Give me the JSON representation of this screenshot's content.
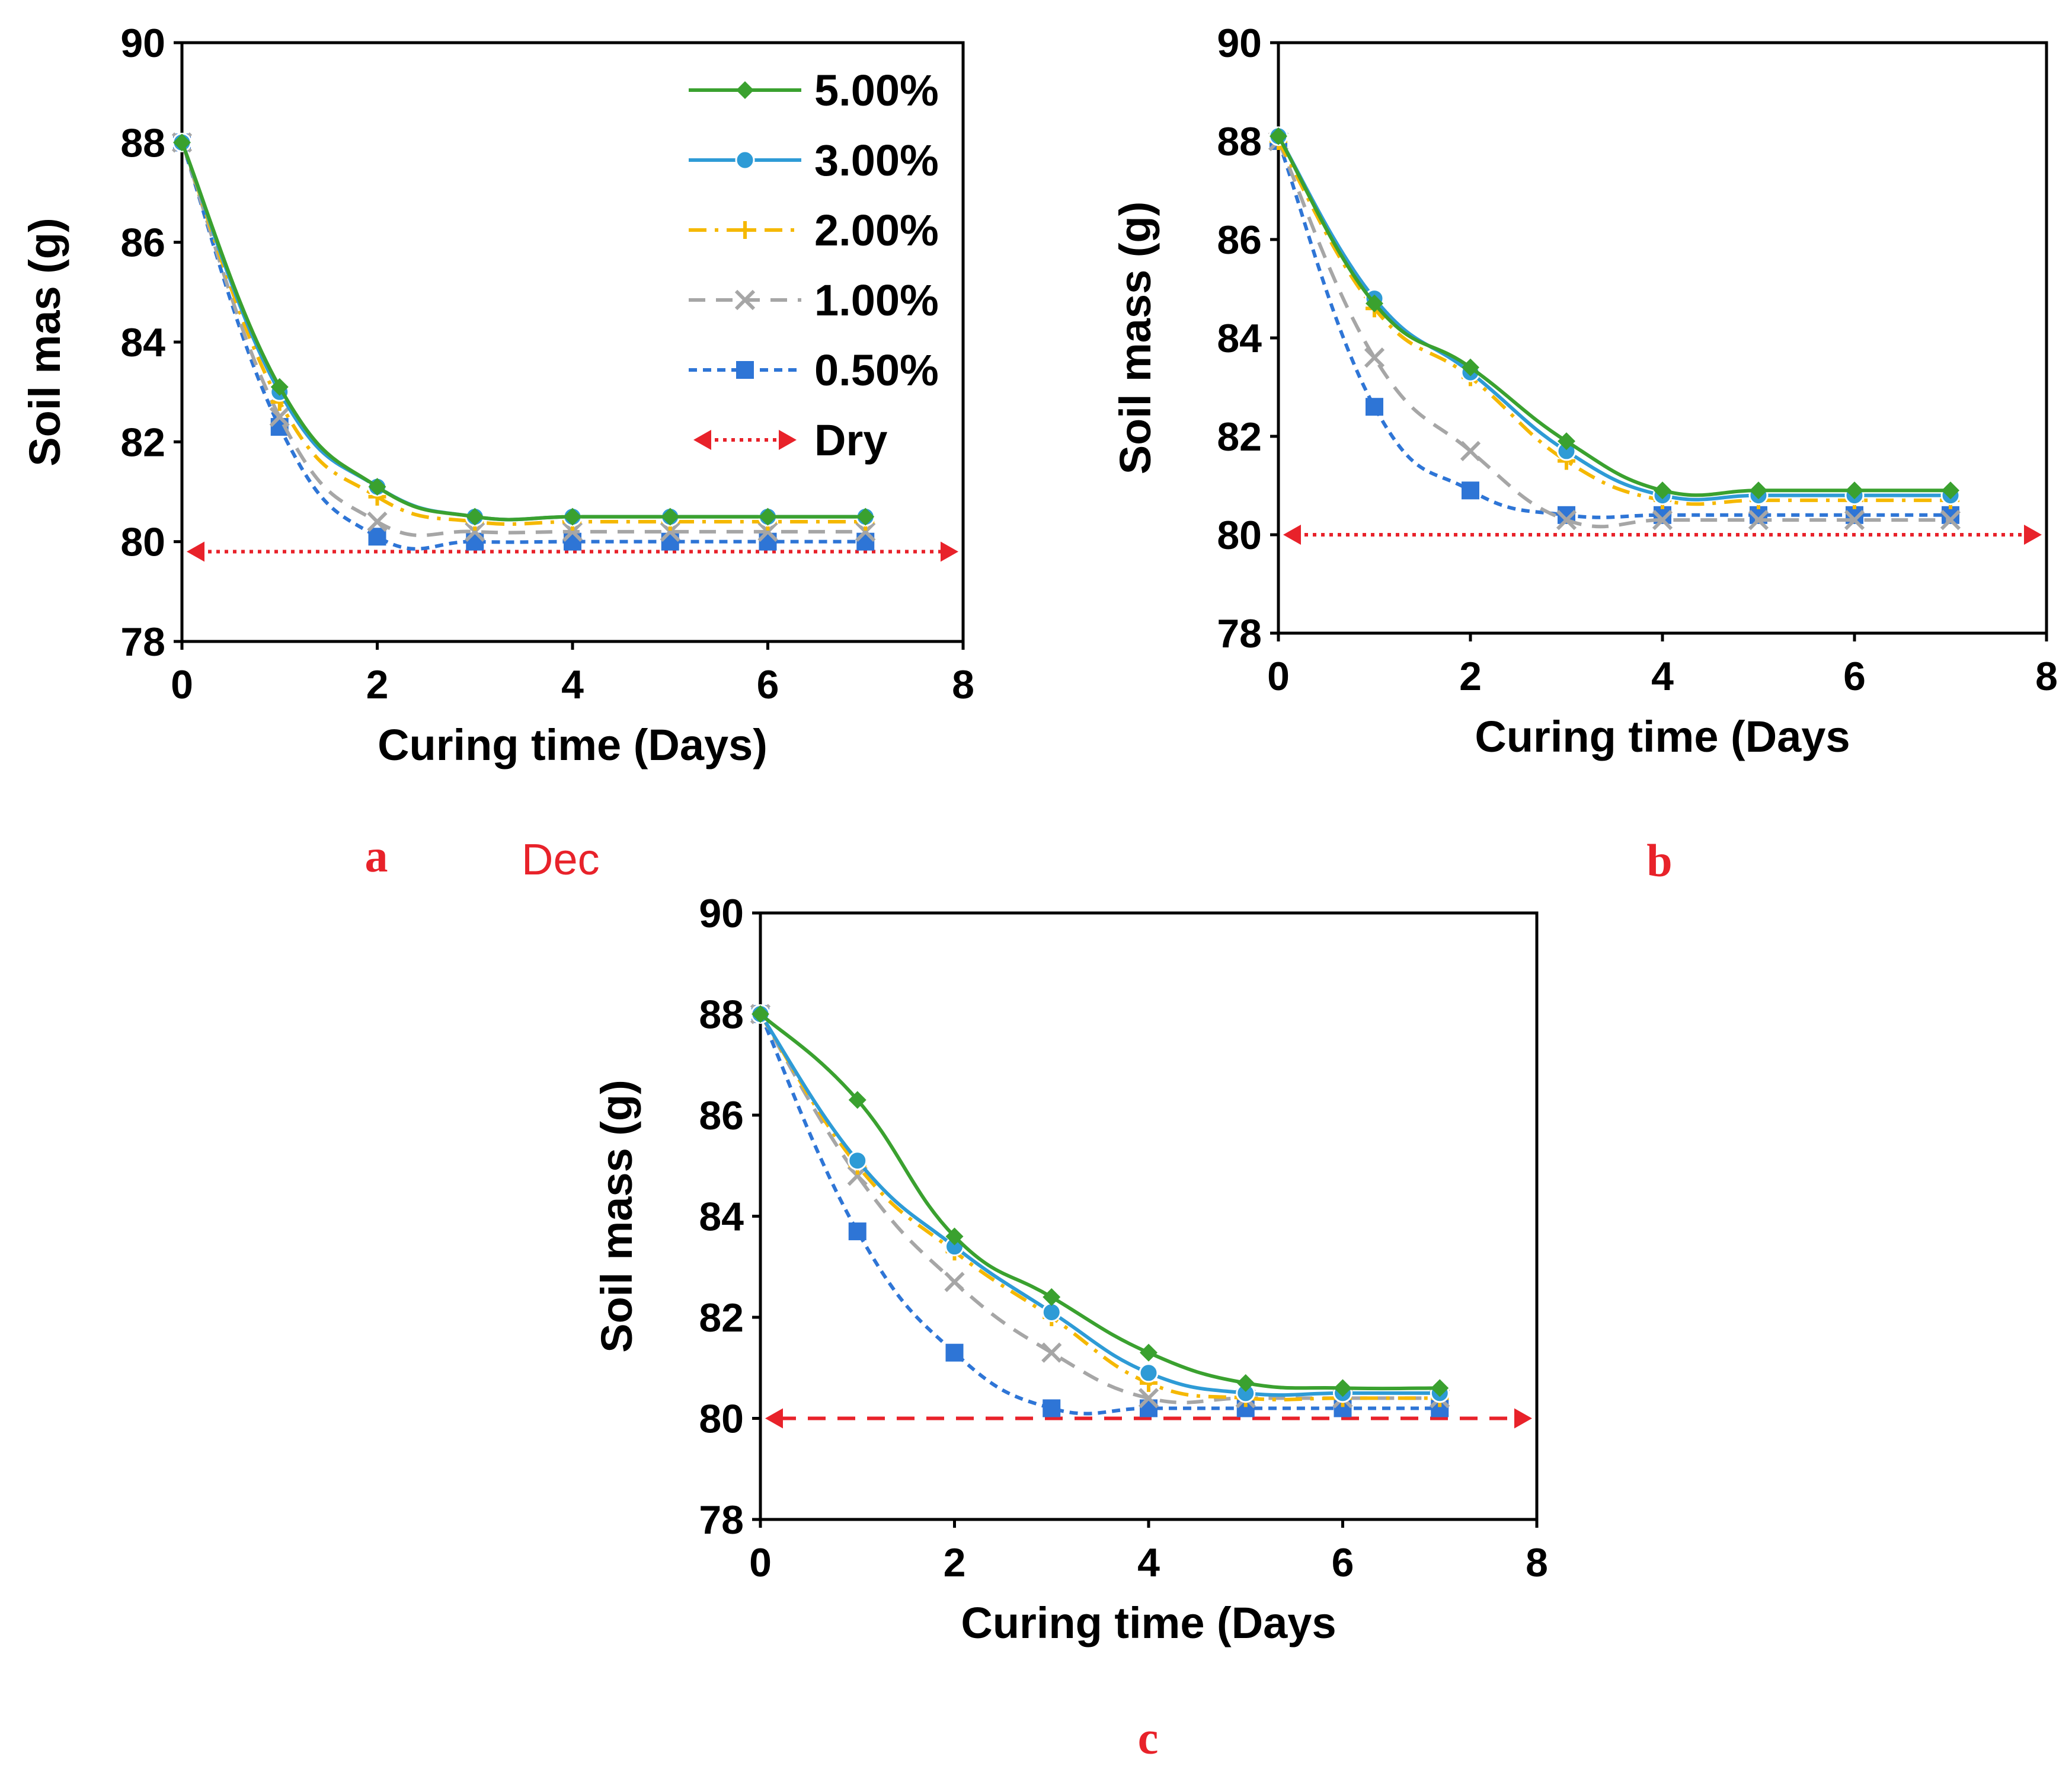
{
  "figure_notes": {
    "note": "Dec"
  },
  "chart_data": [
    {
      "type": "line",
      "panel_label": "a",
      "xlabel": "Curing time (Days)",
      "ylabel": "Soil mas (g)",
      "xlim": [
        0,
        8
      ],
      "ylim": [
        78,
        90
      ],
      "xticks": [
        0,
        2,
        4,
        6,
        8
      ],
      "yticks": [
        78,
        80,
        82,
        84,
        86,
        88,
        90
      ],
      "legend": "top-right",
      "series": [
        {
          "name": "5.00%",
          "color": "#3aa12f",
          "marker": "diamond",
          "dash": "solid",
          "x": [
            0,
            1,
            2,
            3,
            4,
            5,
            6,
            7
          ],
          "y": [
            88.0,
            83.1,
            81.1,
            80.5,
            80.5,
            80.5,
            80.5,
            80.5
          ]
        },
        {
          "name": "3.00%",
          "color": "#2e9bd6",
          "marker": "circle",
          "dash": "solid",
          "x": [
            0,
            1,
            2,
            3,
            4,
            5,
            6,
            7
          ],
          "y": [
            88.0,
            83.0,
            81.1,
            80.5,
            80.5,
            80.5,
            80.5,
            80.5
          ]
        },
        {
          "name": "2.00%",
          "color": "#f5b800",
          "marker": "plus",
          "dash": "dashdot",
          "x": [
            0,
            1,
            2,
            3,
            4,
            5,
            6,
            7
          ],
          "y": [
            88.0,
            82.8,
            80.9,
            80.4,
            80.4,
            80.4,
            80.4,
            80.4
          ]
        },
        {
          "name": "1.00%",
          "color": "#a6a6a6",
          "marker": "x",
          "dash": "dash",
          "x": [
            0,
            1,
            2,
            3,
            4,
            5,
            6,
            7
          ],
          "y": [
            88.0,
            82.5,
            80.4,
            80.2,
            80.2,
            80.2,
            80.2,
            80.2
          ]
        },
        {
          "name": "0.50%",
          "color": "#2e75d6",
          "marker": "square",
          "dash": "dotdash",
          "x": [
            0,
            1,
            2,
            3,
            4,
            5,
            6,
            7
          ],
          "y": [
            88.0,
            82.3,
            80.1,
            80.0,
            80.0,
            80.0,
            80.0,
            80.0
          ]
        }
      ],
      "reference_line": {
        "name": "Dry",
        "y": 79.8,
        "color": "#e8222a",
        "dash": "dotted"
      }
    },
    {
      "type": "line",
      "panel_label": "b",
      "xlabel": "Curing time (Days",
      "ylabel": "Soil mass (g)",
      "xlim": [
        0,
        8
      ],
      "ylim": [
        78,
        90
      ],
      "xticks": [
        0,
        2,
        4,
        6,
        8
      ],
      "yticks": [
        78,
        80,
        82,
        84,
        86,
        88,
        90
      ],
      "series": [
        {
          "name": "5.00%",
          "color": "#3aa12f",
          "marker": "diamond",
          "dash": "solid",
          "x": [
            0,
            1,
            2,
            3,
            4,
            5,
            6,
            7
          ],
          "y": [
            88.1,
            84.7,
            83.4,
            81.9,
            80.9,
            80.9,
            80.9,
            80.9
          ]
        },
        {
          "name": "3.00%",
          "color": "#2e9bd6",
          "marker": "circle",
          "dash": "solid",
          "x": [
            0,
            1,
            2,
            3,
            4,
            5,
            6,
            7
          ],
          "y": [
            88.1,
            84.8,
            83.3,
            81.7,
            80.8,
            80.8,
            80.8,
            80.8
          ]
        },
        {
          "name": "2.00%",
          "color": "#f5b800",
          "marker": "plus",
          "dash": "dashdot",
          "x": [
            0,
            1,
            2,
            3,
            4,
            5,
            6,
            7
          ],
          "y": [
            88.0,
            84.6,
            83.2,
            81.5,
            80.7,
            80.7,
            80.7,
            80.7
          ]
        },
        {
          "name": "1.00%",
          "color": "#a6a6a6",
          "marker": "x",
          "dash": "dash",
          "x": [
            0,
            1,
            2,
            3,
            4,
            5,
            6,
            7
          ],
          "y": [
            88.0,
            83.6,
            81.7,
            80.3,
            80.3,
            80.3,
            80.3,
            80.3
          ]
        },
        {
          "name": "0.50%",
          "color": "#2e75d6",
          "marker": "square",
          "dash": "dotdash",
          "x": [
            0,
            1,
            2,
            3,
            4,
            5,
            6,
            7
          ],
          "y": [
            88.0,
            82.6,
            80.9,
            80.4,
            80.4,
            80.4,
            80.4,
            80.4
          ]
        }
      ],
      "reference_line": {
        "name": "Dry",
        "y": 80.0,
        "color": "#e8222a",
        "dash": "dotted"
      }
    },
    {
      "type": "line",
      "panel_label": "c",
      "xlabel": "Curing time (Days",
      "ylabel": "Soil mass (g)",
      "xlim": [
        0,
        8
      ],
      "ylim": [
        78,
        90
      ],
      "xticks": [
        0,
        2,
        4,
        6,
        8
      ],
      "yticks": [
        78,
        80,
        82,
        84,
        86,
        88,
        90
      ],
      "series": [
        {
          "name": "5.00%",
          "color": "#3aa12f",
          "marker": "diamond",
          "dash": "solid",
          "x": [
            0,
            1,
            2,
            3,
            4,
            5,
            6,
            7
          ],
          "y": [
            88.0,
            86.3,
            83.6,
            82.4,
            81.3,
            80.7,
            80.6,
            80.6
          ]
        },
        {
          "name": "3.00%",
          "color": "#2e9bd6",
          "marker": "circle",
          "dash": "solid",
          "x": [
            0,
            1,
            2,
            3,
            4,
            5,
            6,
            7
          ],
          "y": [
            88.0,
            85.1,
            83.4,
            82.1,
            80.9,
            80.5,
            80.5,
            80.5
          ]
        },
        {
          "name": "2.00%",
          "color": "#f5b800",
          "marker": "plus",
          "dash": "dashdot",
          "x": [
            0,
            1,
            2,
            3,
            4,
            5,
            6,
            7
          ],
          "y": [
            88.0,
            85.0,
            83.3,
            82.0,
            80.7,
            80.4,
            80.4,
            80.4
          ]
        },
        {
          "name": "1.00%",
          "color": "#a6a6a6",
          "marker": "x",
          "dash": "dash",
          "x": [
            0,
            1,
            2,
            3,
            4,
            5,
            6,
            7
          ],
          "y": [
            88.0,
            84.8,
            82.7,
            81.3,
            80.4,
            80.4,
            80.4,
            80.4
          ]
        },
        {
          "name": "0.50%",
          "color": "#2e75d6",
          "marker": "square",
          "dash": "dotdash",
          "x": [
            0,
            1,
            2,
            3,
            4,
            5,
            6,
            7
          ],
          "y": [
            88.0,
            83.7,
            81.3,
            80.2,
            80.2,
            80.2,
            80.2,
            80.2
          ]
        }
      ],
      "reference_line": {
        "name": "Dry",
        "y": 80.0,
        "color": "#e8222a",
        "dash": "dashed"
      }
    }
  ]
}
